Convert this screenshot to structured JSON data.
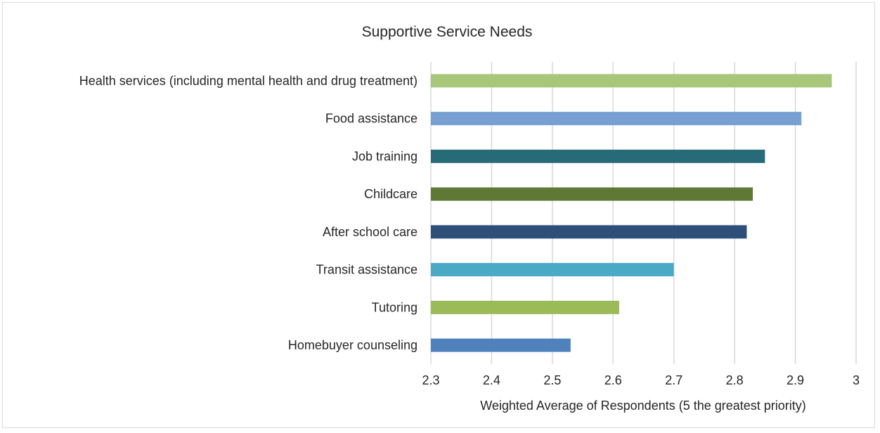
{
  "chart_data": {
    "type": "bar",
    "orientation": "horizontal",
    "title": "Supportive Service Needs",
    "xlabel": "Weighted Average of Respondents (5 the greatest priority)",
    "ylabel": "",
    "xlim": [
      2.3,
      3
    ],
    "x_ticks": [
      "2.3",
      "2.4",
      "2.5",
      "2.6",
      "2.7",
      "2.8",
      "2.9",
      "3"
    ],
    "grid": true,
    "legend": "none",
    "categories": [
      "Health services (including mental health and drug treatment)",
      "Food assistance",
      "Job training",
      "Childcare",
      "After school care",
      "Transit assistance",
      "Tutoring",
      "Homebuyer counseling"
    ],
    "values": [
      2.96,
      2.91,
      2.85,
      2.83,
      2.82,
      2.7,
      2.61,
      2.53
    ],
    "colors": [
      "#a9c77b",
      "#779fd1",
      "#276b78",
      "#607835",
      "#2e4f79",
      "#4aaac6",
      "#9bbb59",
      "#4f81bd"
    ],
    "gridline_color": "#d9d9d9"
  }
}
